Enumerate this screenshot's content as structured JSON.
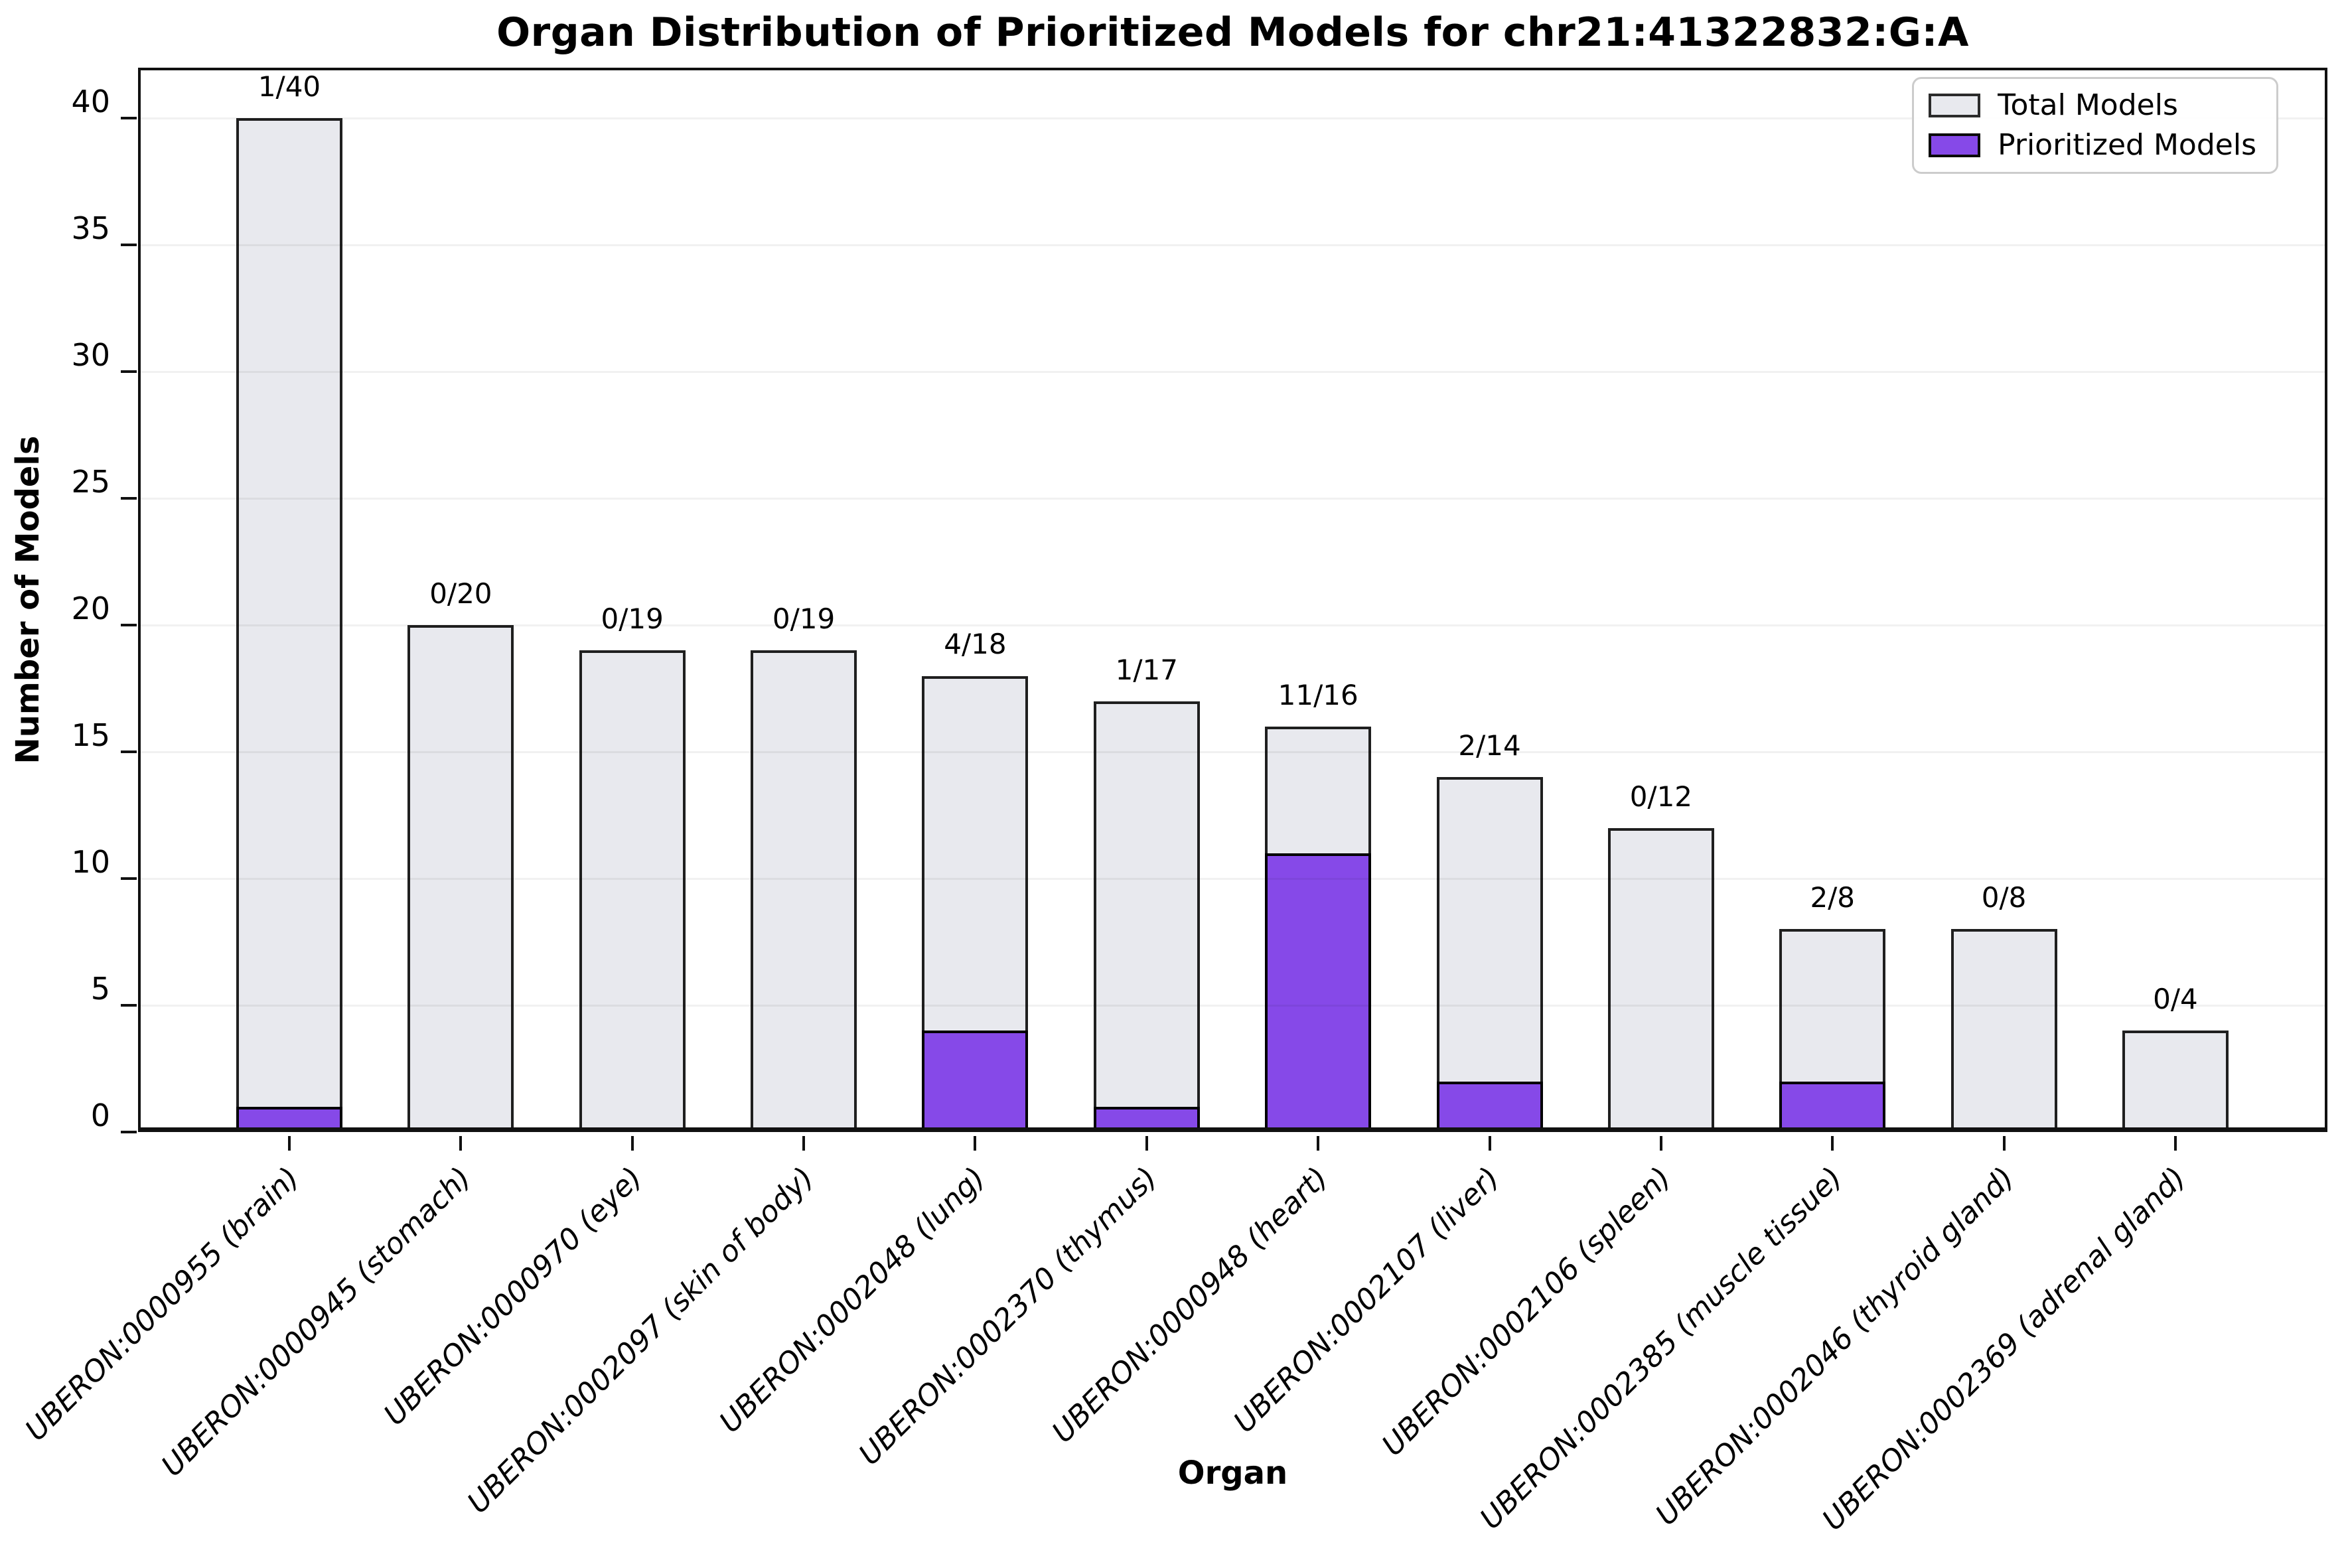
{
  "chart_data": {
    "type": "bar",
    "title": "Organ Distribution of Prioritized Models for chr21:41322832:G:A",
    "xlabel": "Organ",
    "ylabel": "Number of Models",
    "categories": [
      "UBERON:0000955 (brain)",
      "UBERON:0000945 (stomach)",
      "UBERON:0000970 (eye)",
      "UBERON:0002097 (skin of body)",
      "UBERON:0002048 (lung)",
      "UBERON:0002370 (thymus)",
      "UBERON:0000948 (heart)",
      "UBERON:0002107 (liver)",
      "UBERON:0002106 (spleen)",
      "UBERON:0002385 (muscle tissue)",
      "UBERON:0002046 (thyroid gland)",
      "UBERON:0002369 (adrenal gland)"
    ],
    "series": [
      {
        "name": "Total Models",
        "color": "#E8E9EE",
        "edge_color": "#1f1f1f",
        "values": [
          40,
          20,
          19,
          19,
          18,
          17,
          16,
          14,
          12,
          8,
          8,
          4
        ]
      },
      {
        "name": "Prioritized Models",
        "color": "#8649E8",
        "edge_color": "#000000",
        "values": [
          1,
          0,
          0,
          0,
          4,
          1,
          11,
          2,
          0,
          2,
          0,
          0
        ]
      }
    ],
    "bar_labels": [
      "1/40",
      "0/20",
      "0/19",
      "0/19",
      "4/18",
      "1/17",
      "11/16",
      "2/14",
      "0/12",
      "2/8",
      "0/8",
      "0/4"
    ],
    "yticks": [
      0,
      5,
      10,
      15,
      20,
      25,
      30,
      35,
      40
    ],
    "ylim": [
      0,
      42
    ],
    "grid": "horizontal",
    "gridline_color": "#ededed",
    "legend_position": "upper-right",
    "bar_style": "overlay"
  }
}
